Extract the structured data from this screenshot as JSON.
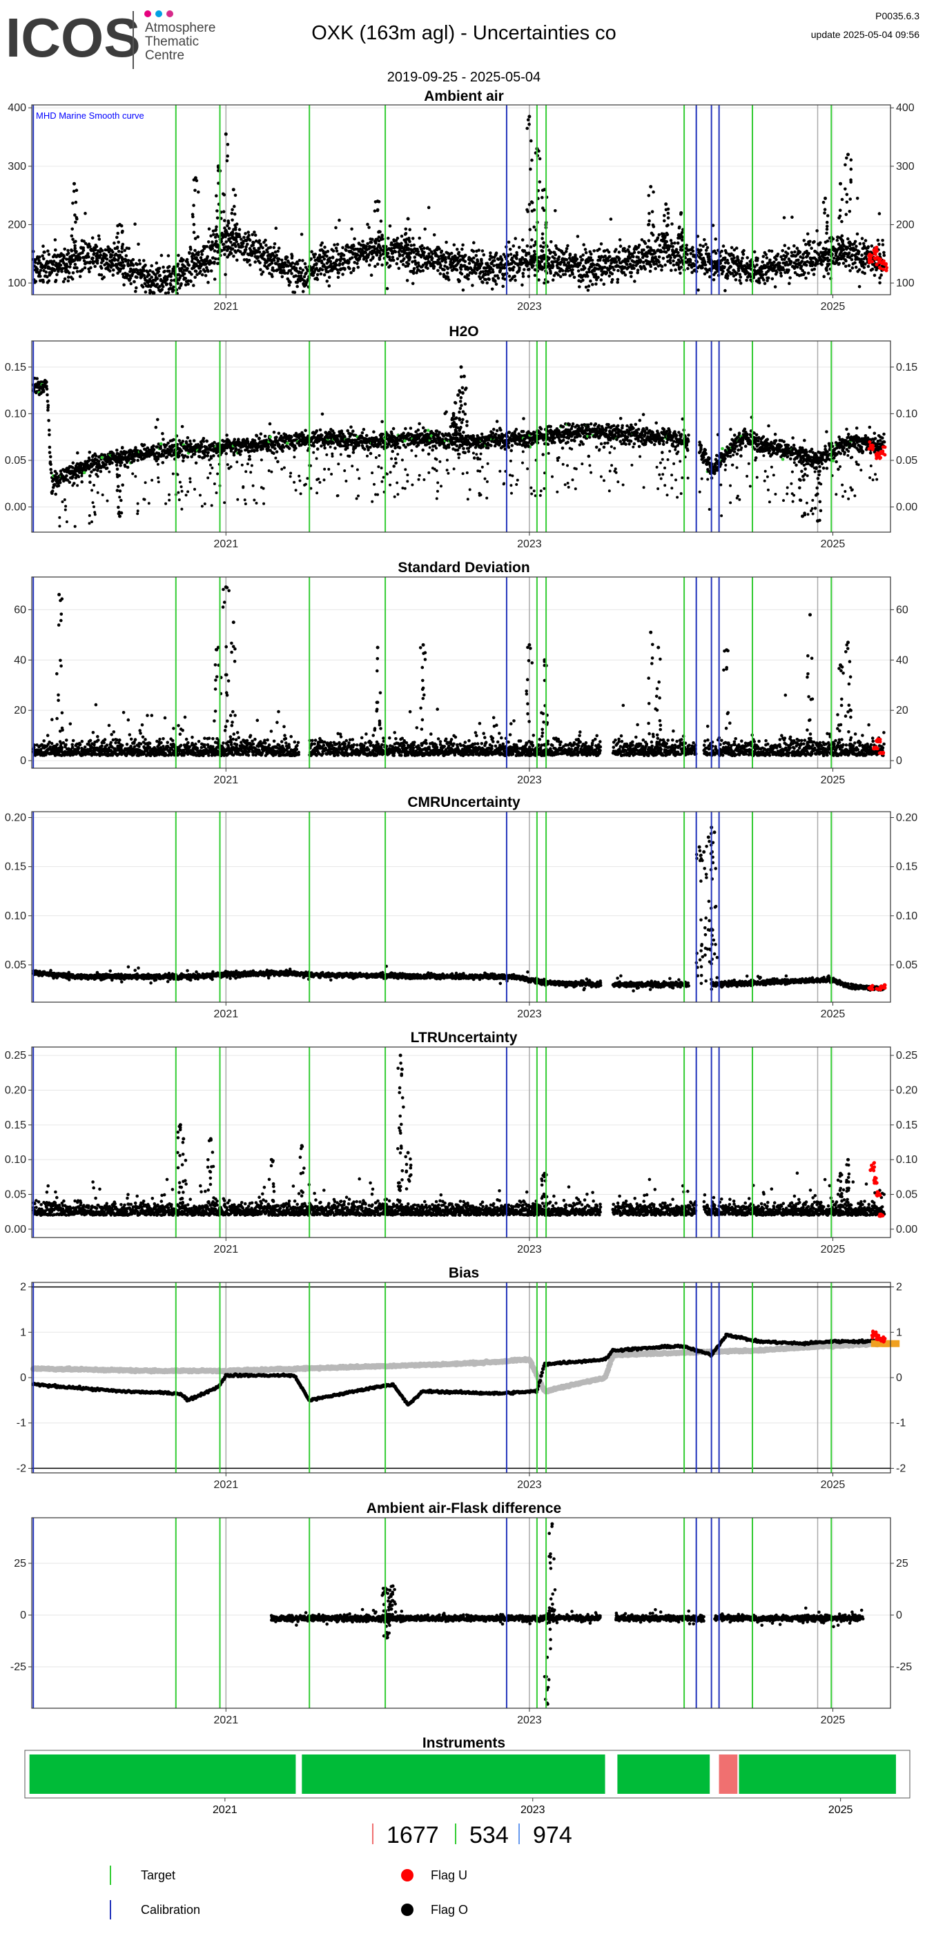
{
  "header": {
    "logo_text": "ICOS",
    "logo_sub": [
      "Atmosphere",
      "Thematic",
      "Centre"
    ],
    "logo_dots": [
      "#e6007e",
      "#00a0e3",
      "#d62a8a"
    ],
    "title": "OXK  (163m agl) - Uncertainties co",
    "subtitle": "2019-09-25 - 2025-05-04",
    "version": "P0035.6.3",
    "update": "update  2025-05-04 09:56"
  },
  "colors": {
    "data": "#000000",
    "target": "#33cc33",
    "calibration": "#2233bb",
    "flag_u": "#ff0000",
    "flag_o": "#000000",
    "reference": "#aaaaaa",
    "grey_series": "#b8b8b8",
    "instrument_green": "#00bb38",
    "instrument_red": "#f07070",
    "panel_bg": "#ffffff",
    "grid": "#e6e6e6",
    "annotation": "#0000ff",
    "bias_median": "#f0a020"
  },
  "chart_data": [
    {
      "id": "ambient",
      "title": "Ambient air",
      "type": "scatter",
      "annotation": "MHD Marine Smooth curve",
      "ylim": [
        80,
        405
      ],
      "yticks": [
        100,
        200,
        300,
        400
      ],
      "xticks": [
        2021,
        2023,
        2025
      ],
      "baseline": [
        [
          2019.73,
          125
        ],
        [
          2019.9,
          130
        ],
        [
          2020.1,
          150
        ],
        [
          2020.3,
          135
        ],
        [
          2020.5,
          100
        ],
        [
          2020.6,
          105
        ],
        [
          2020.8,
          130
        ],
        [
          2021.0,
          175
        ],
        [
          2021.2,
          155
        ],
        [
          2021.4,
          130
        ],
        [
          2021.5,
          105
        ],
        [
          2021.6,
          135
        ],
        [
          2021.9,
          150
        ],
        [
          2022.1,
          155
        ],
        [
          2022.4,
          140
        ],
        [
          2022.7,
          125
        ],
        [
          2023.0,
          140
        ],
        [
          2023.2,
          135
        ],
        [
          2023.4,
          125
        ],
        [
          2023.7,
          140
        ],
        [
          2023.9,
          155
        ],
        [
          2024.2,
          135
        ],
        [
          2024.5,
          125
        ],
        [
          2024.8,
          140
        ],
        [
          2025.0,
          150
        ],
        [
          2025.2,
          145
        ],
        [
          2025.34,
          140
        ]
      ],
      "noise": 25,
      "dense_gaps": [],
      "spikes": [
        [
          2020.8,
          280
        ],
        [
          2020.95,
          300
        ],
        [
          2021.0,
          355
        ],
        [
          2021.05,
          260
        ],
        [
          2022.0,
          240
        ],
        [
          2022.2,
          210
        ],
        [
          2023.0,
          385
        ],
        [
          2023.05,
          330
        ],
        [
          2023.1,
          260
        ],
        [
          2023.8,
          265
        ],
        [
          2023.9,
          235
        ],
        [
          2024.0,
          220
        ],
        [
          2024.95,
          245
        ],
        [
          2025.1,
          320
        ],
        [
          2025.05,
          270
        ],
        [
          2020.0,
          270
        ],
        [
          2020.3,
          200
        ]
      ],
      "flag_u": [
        [
          2025.25,
          145
        ],
        [
          2025.3,
          135
        ],
        [
          2025.34,
          130
        ],
        [
          2025.28,
          150
        ]
      ]
    },
    {
      "id": "h2o",
      "title": "H2O",
      "type": "scatter",
      "ylim": [
        -0.027,
        0.178
      ],
      "yticks": [
        0.0,
        0.05,
        0.1,
        0.15
      ],
      "ytick_labels": [
        "0.00",
        "0.05",
        "0.10",
        "0.15"
      ],
      "xticks": [
        2021,
        2023,
        2025
      ],
      "baseline": [
        [
          2019.73,
          0.13
        ],
        [
          2019.82,
          0.13
        ],
        [
          2019.85,
          0.025
        ],
        [
          2020.0,
          0.04
        ],
        [
          2020.3,
          0.055
        ],
        [
          2020.6,
          0.06
        ],
        [
          2021.0,
          0.065
        ],
        [
          2021.4,
          0.07
        ],
        [
          2021.6,
          0.075
        ],
        [
          2022.0,
          0.07
        ],
        [
          2022.3,
          0.075
        ],
        [
          2022.6,
          0.07
        ],
        [
          2023.0,
          0.075
        ],
        [
          2023.3,
          0.08
        ],
        [
          2023.5,
          0.08
        ],
        [
          2023.9,
          0.075
        ],
        [
          2024.1,
          0.07
        ],
        [
          2024.2,
          0.04
        ],
        [
          2024.4,
          0.075
        ],
        [
          2024.7,
          0.06
        ],
        [
          2024.9,
          0.05
        ],
        [
          2025.1,
          0.07
        ],
        [
          2025.34,
          0.065
        ]
      ],
      "noise": 0.008,
      "dense_gaps": [
        [
          2024.05,
          2024.12
        ]
      ],
      "spikes": [
        [
          2022.55,
          0.15
        ],
        [
          2022.57,
          0.14
        ],
        [
          2022.53,
          0.12
        ],
        [
          2022.5,
          0.1
        ],
        [
          2020.3,
          -0.01
        ],
        [
          2024.8,
          -0.01
        ],
        [
          2024.9,
          -0.015
        ]
      ],
      "flag_u": [
        [
          2025.25,
          0.065
        ],
        [
          2025.3,
          0.055
        ],
        [
          2025.33,
          0.06
        ]
      ]
    },
    {
      "id": "sd",
      "title": "Standard Deviation",
      "type": "scatter",
      "ylim": [
        -3,
        73
      ],
      "yticks": [
        0,
        20,
        40,
        60
      ],
      "xticks": [
        2021,
        2023,
        2025
      ],
      "baseline": [
        [
          2019.73,
          2
        ],
        [
          2025.34,
          2
        ]
      ],
      "noise": 5,
      "dense_gaps": [
        [
          2021.48,
          2021.55
        ],
        [
          2023.47,
          2023.55
        ],
        [
          2024.1,
          2024.15
        ]
      ],
      "spikes": [
        [
          2019.9,
          66
        ],
        [
          2021.0,
          69
        ],
        [
          2020.95,
          45
        ],
        [
          2021.05,
          55
        ],
        [
          2022.0,
          45
        ],
        [
          2022.3,
          46
        ],
        [
          2023.0,
          46
        ],
        [
          2023.1,
          40
        ],
        [
          2023.8,
          51
        ],
        [
          2023.85,
          45
        ],
        [
          2024.3,
          44
        ],
        [
          2024.85,
          58
        ],
        [
          2025.1,
          47
        ],
        [
          2025.05,
          38
        ]
      ],
      "flag_u": [
        [
          2025.28,
          5
        ],
        [
          2025.3,
          8
        ],
        [
          2025.32,
          3
        ]
      ]
    },
    {
      "id": "cmr",
      "title": "CMRUncertainty",
      "type": "scatter",
      "ylim": [
        0.012,
        0.206
      ],
      "yticks": [
        0.05,
        0.1,
        0.15,
        0.2
      ],
      "ytick_labels": [
        "0.05",
        "0.10",
        "0.15",
        "0.20"
      ],
      "xticks": [
        2021,
        2023,
        2025
      ],
      "baseline": [
        [
          2019.73,
          0.042
        ],
        [
          2020.0,
          0.038
        ],
        [
          2020.8,
          0.038
        ],
        [
          2021.0,
          0.04
        ],
        [
          2021.4,
          0.042
        ],
        [
          2021.55,
          0.04
        ],
        [
          2022.5,
          0.038
        ],
        [
          2022.9,
          0.038
        ],
        [
          2023.1,
          0.032
        ],
        [
          2023.5,
          0.03
        ],
        [
          2024.0,
          0.03
        ],
        [
          2024.2,
          0.03
        ],
        [
          2024.5,
          0.032
        ],
        [
          2025.0,
          0.035
        ],
        [
          2025.1,
          0.028
        ],
        [
          2025.34,
          0.026
        ]
      ],
      "noise": 0.002,
      "dense_gaps": [
        [
          2023.47,
          2023.55
        ],
        [
          2024.05,
          2024.2
        ]
      ],
      "spikes": [
        [
          2024.12,
          0.17
        ],
        [
          2024.15,
          0.165
        ],
        [
          2024.18,
          0.18
        ],
        [
          2024.2,
          0.19
        ],
        [
          2024.22,
          0.185
        ]
      ],
      "flag_u": [
        [
          2025.25,
          0.027
        ],
        [
          2025.3,
          0.026
        ],
        [
          2025.33,
          0.028
        ]
      ]
    },
    {
      "id": "ltr",
      "title": "LTRUncertainty",
      "type": "scatter",
      "ylim": [
        -0.012,
        0.262
      ],
      "yticks": [
        0.0,
        0.05,
        0.1,
        0.15,
        0.2,
        0.25
      ],
      "ytick_labels": [
        "0.00",
        "0.05",
        "0.10",
        "0.15",
        "0.20",
        "0.25"
      ],
      "xticks": [
        2021,
        2023,
        2025
      ],
      "baseline": [
        [
          2019.73,
          0.02
        ],
        [
          2025.34,
          0.02
        ]
      ],
      "noise": 0.015,
      "dense_gaps": [
        [
          2023.47,
          2023.55
        ],
        [
          2024.1,
          2024.15
        ]
      ],
      "spikes": [
        [
          2020.7,
          0.15
        ],
        [
          2020.72,
          0.13
        ],
        [
          2020.9,
          0.13
        ],
        [
          2022.15,
          0.25
        ],
        [
          2022.16,
          0.23
        ],
        [
          2021.5,
          0.12
        ],
        [
          2021.3,
          0.1
        ],
        [
          2022.2,
          0.11
        ],
        [
          2023.1,
          0.08
        ],
        [
          2025.1,
          0.1
        ],
        [
          2025.05,
          0.08
        ]
      ],
      "flag_u": [
        [
          2025.26,
          0.09
        ],
        [
          2025.3,
          0.05
        ],
        [
          2025.32,
          0.02
        ],
        [
          2025.28,
          0.07
        ]
      ]
    },
    {
      "id": "bias",
      "title": "Bias",
      "type": "scatter",
      "ylim": [
        -2.1,
        2.1
      ],
      "yticks": [
        -2,
        -1,
        0,
        1,
        2
      ],
      "xticks": [
        2021,
        2023,
        2025
      ],
      "hlines": [
        -2,
        2
      ],
      "grey": [
        [
          2019.73,
          0.2
        ],
        [
          2020.5,
          0.15
        ],
        [
          2021.0,
          0.15
        ],
        [
          2021.5,
          0.2
        ],
        [
          2022.0,
          0.25
        ],
        [
          2022.5,
          0.3
        ],
        [
          2022.8,
          0.35
        ],
        [
          2023.0,
          0.4
        ],
        [
          2023.1,
          -0.3
        ],
        [
          2023.5,
          0.0
        ],
        [
          2023.55,
          0.5
        ],
        [
          2024.0,
          0.55
        ],
        [
          2024.5,
          0.6
        ],
        [
          2025.0,
          0.7
        ],
        [
          2025.34,
          0.75
        ]
      ],
      "black": [
        [
          2019.73,
          -0.15
        ],
        [
          2020.3,
          -0.3
        ],
        [
          2020.7,
          -0.35
        ],
        [
          2020.75,
          -0.5
        ],
        [
          2020.95,
          -0.2
        ],
        [
          2021.0,
          0.05
        ],
        [
          2021.45,
          0.05
        ],
        [
          2021.55,
          -0.5
        ],
        [
          2022.0,
          -0.2
        ],
        [
          2022.1,
          -0.15
        ],
        [
          2022.2,
          -0.6
        ],
        [
          2022.3,
          -0.3
        ],
        [
          2022.8,
          -0.35
        ],
        [
          2023.05,
          -0.3
        ],
        [
          2023.1,
          0.3
        ],
        [
          2023.5,
          0.4
        ],
        [
          2023.55,
          0.6
        ],
        [
          2024.0,
          0.7
        ],
        [
          2024.2,
          0.5
        ],
        [
          2024.3,
          0.95
        ],
        [
          2024.5,
          0.8
        ],
        [
          2024.8,
          0.75
        ],
        [
          2025.0,
          0.8
        ],
        [
          2025.34,
          0.8
        ]
      ],
      "flag_u": [
        [
          2025.27,
          0.95
        ],
        [
          2025.3,
          0.9
        ],
        [
          2025.33,
          0.85
        ]
      ],
      "median": [
        [
          2025.27,
          0.75
        ],
        [
          2025.34,
          0.75
        ]
      ]
    },
    {
      "id": "flask",
      "title": "Ambient air-Flask difference",
      "type": "scatter",
      "ylim": [
        -45,
        47
      ],
      "yticks": [
        -25,
        0,
        25
      ],
      "xticks": [
        2021,
        2023,
        2025
      ],
      "baseline": [
        [
          2021.3,
          -1.5
        ],
        [
          2023.5,
          -1.5
        ],
        [
          2023.7,
          -1.5
        ],
        [
          2025.2,
          -1.5
        ]
      ],
      "noise": 1.2,
      "dense_gaps": [
        [
          2023.47,
          2023.57
        ],
        [
          2024.15,
          2024.22
        ]
      ],
      "spikes": [
        [
          2022.05,
          13
        ],
        [
          2022.08,
          12
        ],
        [
          2022.1,
          14
        ],
        [
          2022.06,
          -11
        ],
        [
          2023.15,
          44
        ],
        [
          2023.15,
          3
        ],
        [
          2023.12,
          -43
        ]
      ],
      "flag_u": []
    }
  ],
  "vlines": {
    "target": [
      2020.67,
      2020.96,
      2021.55,
      2022.05,
      2023.05,
      2023.11,
      2024.02,
      2024.47,
      2024.99
    ],
    "calibration": [
      2019.73,
      2022.85,
      2024.1,
      2024.2,
      2024.25
    ],
    "reference": [
      2021.0,
      2023.0,
      2024.9
    ]
  },
  "x_range": [
    2019.72,
    2025.38
  ],
  "instruments": {
    "title": "Instruments",
    "xticks": [
      2021,
      2023,
      2025
    ],
    "segments": [
      {
        "from": 2019.73,
        "to": 2021.46,
        "color": "green"
      },
      {
        "from": 2021.5,
        "to": 2023.47,
        "color": "green"
      },
      {
        "from": 2023.55,
        "to": 2024.15,
        "color": "green"
      },
      {
        "from": 2024.21,
        "to": 2024.33,
        "color": "red"
      },
      {
        "from": 2024.34,
        "to": 2025.36,
        "color": "green"
      }
    ],
    "ids": [
      {
        "label": "1677",
        "color": "#f07070"
      },
      {
        "label": "534",
        "color": "#33cc33"
      },
      {
        "label": "974",
        "color": "#6699ee"
      }
    ]
  },
  "legend": {
    "items": [
      {
        "label": "Target",
        "kind": "vline",
        "color": "#33cc33"
      },
      {
        "label": "Calibration",
        "kind": "vline",
        "color": "#2233bb"
      },
      {
        "label": "Flag U",
        "kind": "dot",
        "color": "#ff0000"
      },
      {
        "label": "Flag O",
        "kind": "dot",
        "color": "#000000"
      }
    ]
  }
}
